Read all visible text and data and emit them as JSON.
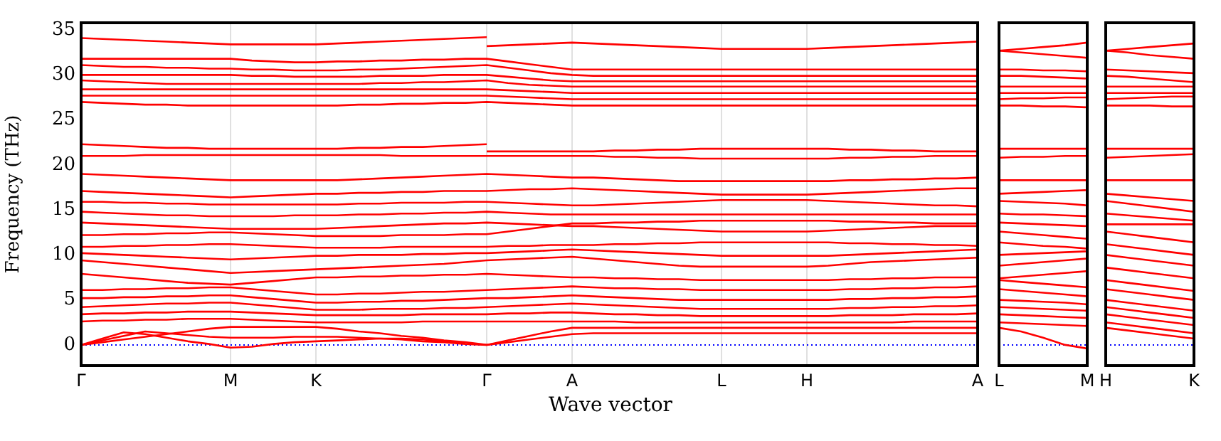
{
  "chart_data": [
    {
      "type": "line",
      "xlabel": "Wave vector",
      "ylabel": "Frequency (THz)",
      "color": "#ff0000",
      "marker": "none",
      "grid": "x",
      "categories": [
        "Γ",
        null,
        null,
        null,
        null,
        null,
        null,
        "M",
        null,
        null,
        null,
        "K",
        null,
        null,
        null,
        null,
        null,
        null,
        null,
        "Γ",
        null,
        null,
        null,
        "A",
        null,
        null,
        null,
        null,
        null,
        null,
        "L",
        null,
        null,
        null,
        "H",
        null,
        null,
        null,
        null,
        null,
        null,
        null,
        "A"
      ],
      "ylim": [
        -2.3,
        35.8
      ],
      "yticks": [
        0,
        5,
        10,
        15,
        20,
        25,
        30,
        35
      ],
      "ref_lines": [
        {
          "axis": "y",
          "value": 0,
          "color": "#0000ff",
          "line_style": "dotted"
        }
      ],
      "series": [
        {
          "values": [
            34.1,
            34.0,
            33.9,
            33.8,
            33.7,
            33.6,
            33.5,
            33.4,
            33.4,
            33.4,
            33.4,
            33.4,
            33.5,
            33.6,
            33.7,
            33.8,
            33.9,
            34.0,
            34.1,
            34.2,
            null,
            null,
            null,
            null,
            null,
            null,
            null,
            null,
            null,
            null,
            null,
            null,
            null,
            null,
            null,
            null,
            null,
            null,
            null,
            null,
            null,
            null,
            null
          ]
        },
        {
          "values": [
            null,
            null,
            null,
            null,
            null,
            null,
            null,
            null,
            null,
            null,
            null,
            null,
            null,
            null,
            null,
            null,
            null,
            null,
            null,
            33.2,
            33.3,
            33.4,
            33.5,
            33.6,
            33.5,
            33.4,
            33.3,
            33.2,
            33.1,
            33.0,
            32.9,
            32.9,
            32.9,
            32.9,
            32.9,
            33.0,
            33.1,
            33.2,
            33.3,
            33.4,
            33.5,
            33.6,
            33.7
          ]
        },
        {
          "values": [
            31.8,
            31.8,
            31.8,
            31.8,
            31.8,
            31.8,
            31.8,
            31.8,
            31.6,
            31.5,
            31.4,
            31.4,
            31.5,
            31.5,
            31.6,
            31.6,
            31.7,
            31.7,
            31.8,
            31.8,
            31.5,
            31.2,
            30.9,
            30.6,
            30.6,
            30.6,
            30.6,
            30.6,
            30.6,
            30.6,
            30.6,
            30.6,
            30.6,
            30.6,
            30.6,
            30.6,
            30.6,
            30.6,
            30.6,
            30.6,
            30.6,
            30.6,
            30.6
          ]
        },
        {
          "values": [
            31.1,
            31.0,
            30.9,
            30.9,
            30.8,
            30.8,
            30.7,
            30.7,
            30.6,
            30.6,
            30.5,
            30.5,
            30.5,
            30.6,
            30.6,
            30.7,
            30.8,
            30.9,
            31.0,
            31.1,
            30.8,
            30.5,
            30.2,
            30.0,
            29.9,
            29.9,
            29.9,
            29.9,
            29.9,
            29.9,
            29.9,
            29.9,
            29.9,
            29.9,
            29.9,
            29.9,
            29.9,
            29.9,
            29.9,
            29.9,
            29.9,
            29.9,
            29.9
          ]
        },
        {
          "values": [
            30.0,
            30.0,
            30.0,
            30.0,
            30.0,
            30.0,
            30.0,
            30.0,
            29.9,
            29.9,
            29.8,
            29.8,
            29.8,
            29.8,
            29.9,
            29.9,
            29.9,
            30.0,
            30.0,
            30.0,
            29.8,
            29.6,
            29.4,
            29.3,
            29.3,
            29.3,
            29.3,
            29.3,
            29.3,
            29.3,
            29.3,
            29.3,
            29.3,
            29.3,
            29.3,
            29.3,
            29.3,
            29.3,
            29.3,
            29.3,
            29.3,
            29.3,
            29.3
          ]
        },
        {
          "values": [
            29.4,
            29.3,
            29.2,
            29.1,
            29.0,
            29.0,
            29.0,
            29.0,
            29.0,
            29.0,
            29.0,
            29.0,
            29.0,
            29.0,
            29.1,
            29.1,
            29.2,
            29.2,
            29.3,
            29.4,
            29.1,
            28.9,
            28.8,
            28.7,
            28.7,
            28.7,
            28.7,
            28.7,
            28.7,
            28.7,
            28.7,
            28.7,
            28.7,
            28.7,
            28.7,
            28.7,
            28.7,
            28.7,
            28.7,
            28.7,
            28.7,
            28.7,
            28.7
          ]
        },
        {
          "values": [
            28.4,
            28.4,
            28.4,
            28.4,
            28.4,
            28.4,
            28.4,
            28.4,
            28.4,
            28.4,
            28.4,
            28.4,
            28.4,
            28.4,
            28.4,
            28.4,
            28.4,
            28.4,
            28.4,
            28.4,
            28.3,
            28.2,
            28.1,
            28.0,
            28.0,
            28.0,
            28.0,
            28.0,
            28.0,
            28.0,
            28.0,
            28.0,
            28.0,
            28.0,
            28.0,
            28.0,
            28.0,
            28.0,
            28.0,
            28.0,
            28.0,
            28.0,
            28.0
          ]
        },
        {
          "values": [
            27.7,
            27.7,
            27.7,
            27.7,
            27.7,
            27.7,
            27.7,
            27.7,
            27.7,
            27.7,
            27.7,
            27.7,
            27.7,
            27.7,
            27.7,
            27.7,
            27.7,
            27.7,
            27.7,
            27.7,
            27.6,
            27.5,
            27.4,
            27.3,
            27.3,
            27.3,
            27.3,
            27.3,
            27.3,
            27.3,
            27.3,
            27.3,
            27.3,
            27.3,
            27.3,
            27.3,
            27.3,
            27.3,
            27.3,
            27.3,
            27.3,
            27.3,
            27.3
          ]
        },
        {
          "values": [
            27.0,
            26.9,
            26.8,
            26.7,
            26.7,
            26.6,
            26.6,
            26.6,
            26.6,
            26.6,
            26.6,
            26.6,
            26.6,
            26.7,
            26.7,
            26.8,
            26.8,
            26.9,
            26.9,
            27.0,
            26.9,
            26.8,
            26.7,
            26.6,
            26.6,
            26.6,
            26.6,
            26.6,
            26.6,
            26.6,
            26.6,
            26.6,
            26.6,
            26.6,
            26.6,
            26.6,
            26.6,
            26.6,
            26.6,
            26.6,
            26.6,
            26.6,
            26.6
          ]
        },
        {
          "values": [
            22.3,
            22.2,
            22.1,
            22.0,
            21.9,
            21.9,
            21.8,
            21.8,
            21.8,
            21.8,
            21.8,
            21.8,
            21.8,
            21.9,
            21.9,
            22.0,
            22.0,
            22.1,
            22.2,
            22.3,
            null,
            null,
            null,
            null,
            null,
            null,
            null,
            null,
            null,
            null,
            null,
            null,
            null,
            null,
            null,
            null,
            null,
            null,
            null,
            null,
            null,
            null,
            null
          ]
        },
        {
          "values": [
            21.0,
            21.0,
            21.0,
            21.1,
            21.1,
            21.1,
            21.1,
            21.1,
            21.1,
            21.1,
            21.1,
            21.1,
            21.1,
            21.1,
            21.1,
            21.0,
            21.0,
            21.0,
            21.0,
            21.0,
            21.0,
            21.0,
            21.0,
            21.0,
            21.0,
            20.9,
            20.9,
            20.8,
            20.8,
            20.7,
            20.7,
            20.7,
            20.7,
            20.7,
            20.7,
            20.7,
            20.8,
            20.8,
            20.9,
            20.9,
            21.0,
            21.0,
            21.0
          ]
        },
        {
          "values": [
            null,
            null,
            null,
            null,
            null,
            null,
            null,
            null,
            null,
            null,
            null,
            null,
            null,
            null,
            null,
            null,
            null,
            null,
            null,
            21.5,
            21.5,
            21.5,
            21.5,
            21.5,
            21.5,
            21.6,
            21.6,
            21.7,
            21.7,
            21.8,
            21.8,
            21.8,
            21.8,
            21.8,
            21.8,
            21.8,
            21.7,
            21.7,
            21.6,
            21.6,
            21.5,
            21.5,
            21.5
          ]
        },
        {
          "values": [
            19.0,
            18.9,
            18.8,
            18.7,
            18.6,
            18.5,
            18.4,
            18.3,
            18.3,
            18.3,
            18.3,
            18.3,
            18.3,
            18.4,
            18.5,
            18.6,
            18.7,
            18.8,
            18.9,
            19.0,
            18.9,
            18.8,
            18.7,
            18.6,
            18.6,
            18.5,
            18.4,
            18.3,
            18.2,
            18.2,
            18.2,
            18.2,
            18.2,
            18.2,
            18.2,
            18.2,
            18.3,
            18.3,
            18.4,
            18.4,
            18.5,
            18.5,
            18.6
          ]
        },
        {
          "values": [
            17.1,
            17.0,
            16.9,
            16.8,
            16.7,
            16.6,
            16.5,
            16.4,
            16.5,
            16.6,
            16.7,
            16.8,
            16.8,
            16.9,
            16.9,
            17.0,
            17.0,
            17.1,
            17.1,
            17.1,
            17.2,
            17.3,
            17.3,
            17.4,
            17.3,
            17.2,
            17.1,
            17.0,
            16.9,
            16.8,
            16.7,
            16.7,
            16.7,
            16.7,
            16.7,
            16.8,
            16.9,
            17.0,
            17.1,
            17.2,
            17.3,
            17.4,
            17.4
          ]
        },
        {
          "values": [
            15.9,
            15.9,
            15.8,
            15.8,
            15.7,
            15.7,
            15.6,
            15.6,
            15.6,
            15.6,
            15.6,
            15.6,
            15.6,
            15.7,
            15.7,
            15.8,
            15.8,
            15.8,
            15.9,
            15.9,
            15.8,
            15.7,
            15.6,
            15.5,
            15.5,
            15.6,
            15.7,
            15.8,
            15.9,
            16.0,
            16.1,
            16.1,
            16.1,
            16.1,
            16.1,
            16.0,
            15.9,
            15.8,
            15.7,
            15.6,
            15.5,
            15.5,
            15.4
          ]
        },
        {
          "values": [
            14.8,
            14.7,
            14.6,
            14.5,
            14.4,
            14.4,
            14.3,
            14.3,
            14.3,
            14.3,
            14.4,
            14.4,
            14.4,
            14.5,
            14.5,
            14.6,
            14.6,
            14.7,
            14.7,
            14.8,
            14.7,
            14.6,
            14.5,
            14.5,
            14.5,
            14.5,
            14.5,
            14.5,
            14.5,
            14.5,
            14.5,
            14.5,
            14.5,
            14.5,
            14.5,
            14.5,
            14.5,
            14.5,
            14.5,
            14.5,
            14.5,
            14.5,
            14.5
          ]
        },
        {
          "values": [
            13.6,
            13.5,
            13.4,
            13.3,
            13.2,
            13.1,
            13.0,
            12.9,
            12.9,
            12.9,
            12.9,
            12.9,
            13.0,
            13.1,
            13.2,
            13.3,
            13.4,
            13.5,
            13.5,
            13.6,
            13.5,
            13.4,
            13.3,
            13.2,
            13.2,
            13.1,
            13.0,
            12.9,
            12.8,
            12.7,
            12.6,
            12.6,
            12.6,
            12.6,
            12.6,
            12.7,
            12.8,
            12.9,
            13.0,
            13.1,
            13.2,
            13.2,
            13.2
          ]
        },
        {
          "values": [
            12.2,
            12.2,
            12.3,
            12.3,
            12.4,
            12.4,
            12.5,
            12.5,
            12.4,
            12.3,
            12.2,
            12.1,
            12.1,
            12.1,
            12.1,
            12.2,
            12.2,
            12.2,
            12.3,
            12.3,
            12.6,
            12.9,
            13.2,
            13.5,
            13.5,
            13.6,
            13.6,
            13.7,
            13.7,
            13.8,
            13.8,
            13.8,
            13.8,
            13.8,
            13.8,
            13.8,
            13.7,
            13.7,
            13.6,
            13.6,
            13.5,
            13.5,
            13.5
          ]
        },
        {
          "values": [
            10.9,
            10.9,
            11.0,
            11.0,
            11.1,
            11.1,
            11.2,
            11.2,
            11.1,
            11.0,
            10.9,
            10.8,
            10.8,
            10.8,
            10.8,
            10.9,
            10.9,
            10.9,
            10.9,
            10.9,
            11.0,
            11.0,
            11.1,
            11.1,
            11.1,
            11.2,
            11.2,
            11.3,
            11.3,
            11.4,
            11.4,
            11.4,
            11.4,
            11.4,
            11.4,
            11.4,
            11.3,
            11.3,
            11.2,
            11.2,
            11.1,
            11.1,
            11.0
          ]
        },
        {
          "values": [
            10.2,
            10.1,
            10.0,
            9.9,
            9.8,
            9.7,
            9.6,
            9.5,
            9.6,
            9.7,
            9.8,
            9.9,
            9.9,
            10.0,
            10.0,
            10.0,
            10.1,
            10.1,
            10.2,
            10.2,
            10.3,
            10.4,
            10.5,
            10.6,
            10.5,
            10.4,
            10.3,
            10.2,
            10.1,
            10.0,
            9.9,
            9.9,
            9.9,
            9.9,
            9.9,
            9.9,
            10.0,
            10.1,
            10.2,
            10.3,
            10.4,
            10.5,
            10.6
          ]
        },
        {
          "values": [
            9.4,
            9.2,
            9.0,
            8.8,
            8.6,
            8.4,
            8.2,
            8.0,
            8.1,
            8.2,
            8.3,
            8.4,
            8.5,
            8.6,
            8.7,
            8.8,
            8.9,
            9.0,
            9.2,
            9.4,
            9.5,
            9.6,
            9.7,
            9.8,
            9.6,
            9.4,
            9.2,
            9.0,
            8.8,
            8.7,
            8.7,
            8.7,
            8.7,
            8.7,
            8.7,
            8.8,
            9.0,
            9.2,
            9.3,
            9.4,
            9.5,
            9.6,
            9.7
          ]
        },
        {
          "values": [
            7.9,
            7.7,
            7.5,
            7.3,
            7.1,
            6.9,
            6.8,
            6.7,
            6.9,
            7.1,
            7.3,
            7.5,
            7.5,
            7.6,
            7.6,
            7.7,
            7.7,
            7.8,
            7.8,
            7.9,
            7.8,
            7.7,
            7.6,
            7.5,
            7.5,
            7.4,
            7.4,
            7.3,
            7.3,
            7.2,
            7.2,
            7.2,
            7.2,
            7.2,
            7.2,
            7.2,
            7.3,
            7.3,
            7.4,
            7.4,
            7.5,
            7.5,
            7.5
          ]
        },
        {
          "values": [
            6.1,
            6.1,
            6.2,
            6.2,
            6.3,
            6.3,
            6.4,
            6.4,
            6.2,
            6.0,
            5.8,
            5.6,
            5.6,
            5.7,
            5.7,
            5.8,
            5.9,
            5.9,
            6.0,
            6.1,
            6.2,
            6.3,
            6.4,
            6.5,
            6.4,
            6.3,
            6.3,
            6.2,
            6.2,
            6.1,
            6.1,
            6.1,
            6.1,
            6.1,
            6.1,
            6.1,
            6.2,
            6.2,
            6.3,
            6.3,
            6.4,
            6.4,
            6.5
          ]
        },
        {
          "values": [
            5.2,
            5.2,
            5.3,
            5.3,
            5.4,
            5.4,
            5.5,
            5.5,
            5.3,
            5.1,
            4.9,
            4.7,
            4.7,
            4.8,
            4.8,
            4.9,
            4.9,
            5.0,
            5.1,
            5.2,
            5.2,
            5.3,
            5.4,
            5.5,
            5.4,
            5.3,
            5.2,
            5.1,
            5.0,
            5.0,
            5.0,
            5.0,
            5.0,
            5.0,
            5.0,
            5.0,
            5.1,
            5.1,
            5.2,
            5.2,
            5.3,
            5.3,
            5.4
          ]
        },
        {
          "values": [
            4.2,
            4.3,
            4.4,
            4.5,
            4.6,
            4.6,
            4.7,
            4.7,
            4.5,
            4.3,
            4.1,
            3.9,
            3.9,
            3.9,
            4.0,
            4.0,
            4.0,
            4.1,
            4.1,
            4.2,
            4.3,
            4.4,
            4.5,
            4.6,
            4.5,
            4.4,
            4.3,
            4.2,
            4.1,
            4.0,
            4.0,
            4.0,
            4.0,
            4.0,
            4.0,
            4.0,
            4.1,
            4.1,
            4.2,
            4.2,
            4.3,
            4.3,
            4.4
          ]
        },
        {
          "values": [
            3.4,
            3.5,
            3.5,
            3.6,
            3.6,
            3.7,
            3.7,
            3.7,
            3.6,
            3.5,
            3.4,
            3.3,
            3.3,
            3.3,
            3.3,
            3.3,
            3.4,
            3.4,
            3.4,
            3.4,
            3.5,
            3.5,
            3.6,
            3.6,
            3.5,
            3.4,
            3.4,
            3.3,
            3.3,
            3.2,
            3.2,
            3.2,
            3.2,
            3.2,
            3.2,
            3.2,
            3.3,
            3.3,
            3.3,
            3.4,
            3.4,
            3.4,
            3.5
          ]
        },
        {
          "values": [
            2.6,
            2.7,
            2.7,
            2.8,
            2.8,
            2.9,
            2.9,
            2.9,
            2.8,
            2.7,
            2.6,
            2.5,
            2.5,
            2.5,
            2.5,
            2.5,
            2.6,
            2.6,
            2.6,
            2.6,
            2.6,
            2.6,
            2.6,
            2.6,
            2.6,
            2.6,
            2.5,
            2.5,
            2.5,
            2.5,
            2.5,
            2.5,
            2.5,
            2.5,
            2.5,
            2.5,
            2.5,
            2.5,
            2.5,
            2.6,
            2.6,
            2.6,
            2.6
          ]
        },
        {
          "values": [
            0,
            0.3,
            0.6,
            0.9,
            1.2,
            1.5,
            1.8,
            2.0,
            2.0,
            2.0,
            2.0,
            2.0,
            1.8,
            1.5,
            1.3,
            1.0,
            0.8,
            0.5,
            0.3,
            0,
            0.5,
            1.0,
            1.5,
            1.9,
            1.9,
            1.9,
            1.9,
            1.9,
            1.9,
            1.9,
            1.9,
            1.9,
            1.9,
            1.9,
            1.9,
            1.9,
            1.9,
            1.9,
            1.9,
            1.9,
            1.9,
            1.9,
            1.9
          ]
        },
        {
          "values": [
            0,
            0.5,
            1.0,
            1.5,
            1.3,
            1.1,
            0.9,
            0.8,
            0.8,
            0.8,
            0.9,
            0.9,
            0.9,
            0.8,
            0.7,
            0.6,
            0.4,
            0.3,
            0.1,
            0,
            0.3,
            0.6,
            0.9,
            1.2,
            1.3,
            1.3,
            1.3,
            1.3,
            1.3,
            1.3,
            1.3,
            1.3,
            1.3,
            1.3,
            1.3,
            1.3,
            1.3,
            1.3,
            1.3,
            1.3,
            1.3,
            1.3,
            1.3
          ]
        },
        {
          "values": [
            0,
            0.7,
            1.4,
            1.2,
            0.8,
            0.4,
            0.1,
            -0.3,
            -0.2,
            0.1,
            0.3,
            0.4,
            0.5,
            0.6,
            0.7,
            0.7,
            0.6,
            0.4,
            0.2,
            null,
            null,
            null,
            null,
            null,
            null,
            null,
            null,
            null,
            null,
            null,
            null,
            null,
            null,
            null,
            null,
            null,
            null,
            null,
            null,
            null,
            null,
            null,
            null
          ]
        }
      ]
    },
    {
      "type": "line",
      "color": "#ff0000",
      "marker": "none",
      "tick_labels": "x",
      "categories": [
        "L",
        null,
        null,
        null,
        "M"
      ],
      "ylim": [
        -2.3,
        35.8
      ],
      "ref_lines": [
        {
          "axis": "y",
          "value": 0,
          "color": "#0000ff",
          "line_style": "dotted"
        }
      ],
      "series": [
        {
          "values": [
            32.7,
            32.9,
            33.1,
            33.3,
            33.6
          ]
        },
        {
          "values": [
            32.7,
            32.5,
            32.3,
            32.1,
            31.9
          ]
        },
        {
          "values": [
            30.6,
            30.6,
            30.5,
            30.5,
            30.4
          ]
        },
        {
          "values": [
            29.9,
            29.9,
            29.8,
            29.7,
            29.6
          ]
        },
        {
          "values": [
            28.7,
            28.7,
            28.7,
            28.7,
            28.7
          ]
        },
        {
          "values": [
            28.0,
            28.0,
            28.0,
            28.0,
            28.0
          ]
        },
        {
          "values": [
            27.3,
            27.4,
            27.4,
            27.5,
            27.5
          ]
        },
        {
          "values": [
            26.6,
            26.6,
            26.5,
            26.5,
            26.4
          ]
        },
        {
          "values": [
            21.8,
            21.8,
            21.8,
            21.8,
            21.8
          ]
        },
        {
          "values": [
            20.8,
            20.9,
            20.9,
            21.0,
            21.0
          ]
        },
        {
          "values": [
            18.3,
            18.3,
            18.3,
            18.3,
            18.3
          ]
        },
        {
          "values": [
            16.8,
            16.9,
            17.0,
            17.1,
            17.2
          ]
        },
        {
          "values": [
            16.0,
            15.9,
            15.8,
            15.7,
            15.5
          ]
        },
        {
          "values": [
            14.6,
            14.5,
            14.5,
            14.4,
            14.3
          ]
        },
        {
          "values": [
            13.6,
            13.5,
            13.4,
            13.3,
            13.2
          ]
        },
        {
          "values": [
            12.6,
            12.4,
            12.2,
            12.0,
            11.8
          ]
        },
        {
          "values": [
            11.4,
            11.2,
            11.0,
            10.9,
            10.7
          ]
        },
        {
          "values": [
            10.0,
            10.1,
            10.2,
            10.3,
            10.4
          ]
        },
        {
          "values": [
            8.8,
            9.0,
            9.2,
            9.4,
            9.6
          ]
        },
        {
          "values": [
            7.4,
            7.6,
            7.8,
            8.0,
            8.2
          ]
        },
        {
          "values": [
            7.2,
            7.0,
            6.8,
            6.6,
            6.4
          ]
        },
        {
          "values": [
            6.2,
            6.0,
            5.8,
            5.6,
            5.4
          ]
        },
        {
          "values": [
            5.0,
            4.9,
            4.8,
            4.7,
            4.5
          ]
        },
        {
          "values": [
            4.2,
            4.1,
            4.0,
            3.9,
            3.8
          ]
        },
        {
          "values": [
            3.4,
            3.3,
            3.2,
            3.1,
            3.0
          ]
        },
        {
          "values": [
            2.5,
            2.4,
            2.3,
            2.2,
            2.1
          ]
        },
        {
          "values": [
            1.9,
            1.5,
            0.8,
            0,
            -0.4
          ]
        }
      ]
    },
    {
      "type": "line",
      "color": "#ff0000",
      "marker": "none",
      "tick_labels": "x",
      "categories": [
        "H",
        null,
        null,
        null,
        "K"
      ],
      "ylim": [
        -2.3,
        35.8
      ],
      "ref_lines": [
        {
          "axis": "y",
          "value": 0,
          "color": "#0000ff",
          "line_style": "dotted"
        }
      ],
      "series": [
        {
          "values": [
            32.7,
            32.9,
            33.1,
            33.3,
            33.5
          ]
        },
        {
          "values": [
            32.7,
            32.5,
            32.2,
            32.0,
            31.8
          ]
        },
        {
          "values": [
            30.6,
            30.5,
            30.4,
            30.3,
            30.2
          ]
        },
        {
          "values": [
            29.9,
            29.8,
            29.6,
            29.4,
            29.2
          ]
        },
        {
          "values": [
            28.7,
            28.7,
            28.7,
            28.7,
            28.7
          ]
        },
        {
          "values": [
            28.0,
            28.0,
            28.0,
            28.0,
            28.0
          ]
        },
        {
          "values": [
            27.3,
            27.4,
            27.5,
            27.6,
            27.6
          ]
        },
        {
          "values": [
            26.6,
            26.6,
            26.6,
            26.5,
            26.5
          ]
        },
        {
          "values": [
            21.8,
            21.8,
            21.8,
            21.8,
            21.8
          ]
        },
        {
          "values": [
            20.8,
            20.9,
            21.0,
            21.1,
            21.2
          ]
        },
        {
          "values": [
            18.3,
            18.3,
            18.3,
            18.3,
            18.3
          ]
        },
        {
          "values": [
            16.8,
            16.6,
            16.4,
            16.2,
            16.0
          ]
        },
        {
          "values": [
            16.0,
            15.7,
            15.4,
            15.1,
            14.8
          ]
        },
        {
          "values": [
            14.6,
            14.4,
            14.2,
            14.0,
            13.8
          ]
        },
        {
          "values": [
            13.4,
            13.4,
            13.4,
            13.4,
            13.4
          ]
        },
        {
          "values": [
            12.6,
            12.3,
            12.0,
            11.7,
            11.4
          ]
        },
        {
          "values": [
            11.2,
            10.9,
            10.6,
            10.3,
            10.0
          ]
        },
        {
          "values": [
            10.0,
            9.7,
            9.4,
            9.1,
            8.8
          ]
        },
        {
          "values": [
            8.6,
            8.3,
            8.0,
            7.7,
            7.4
          ]
        },
        {
          "values": [
            7.2,
            6.9,
            6.6,
            6.3,
            6.0
          ]
        },
        {
          "values": [
            6.2,
            5.9,
            5.6,
            5.3,
            5.0
          ]
        },
        {
          "values": [
            5.0,
            4.7,
            4.4,
            4.1,
            3.8
          ]
        },
        {
          "values": [
            4.2,
            3.9,
            3.6,
            3.3,
            3.0
          ]
        },
        {
          "values": [
            3.4,
            3.1,
            2.8,
            2.5,
            2.2
          ]
        },
        {
          "values": [
            2.5,
            2.2,
            1.9,
            1.6,
            1.3
          ]
        },
        {
          "values": [
            1.9,
            1.6,
            1.3,
            1.0,
            0.7
          ]
        }
      ]
    }
  ]
}
